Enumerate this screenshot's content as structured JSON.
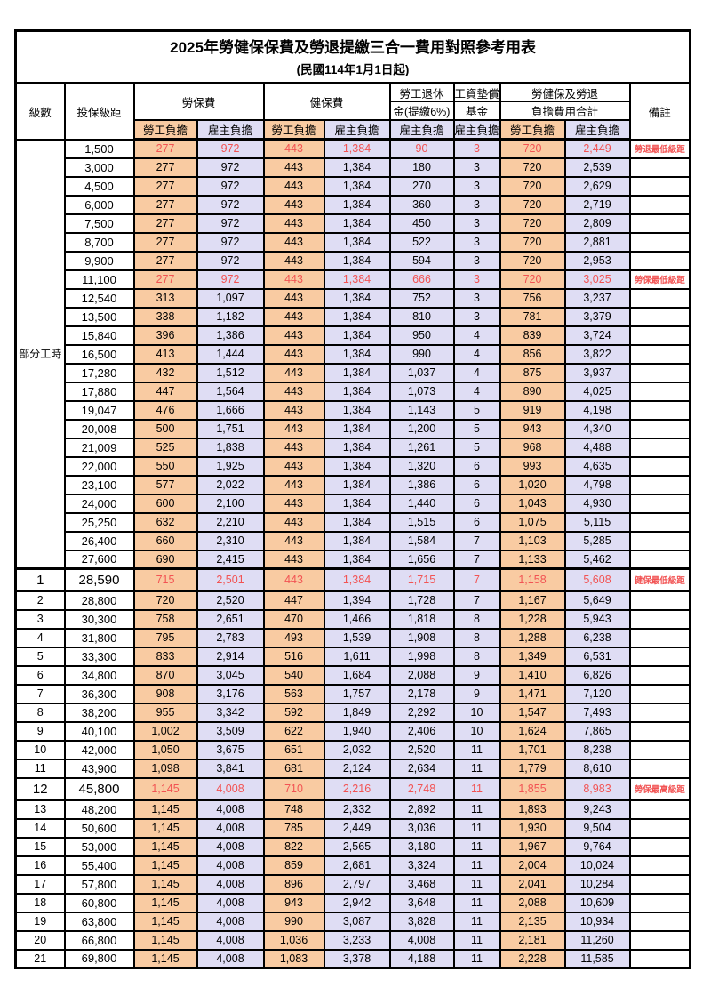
{
  "title": "2025年勞健保保費及勞退提繳三合一費用對照參考用表",
  "subtitle": "(民國114年1月1日起)",
  "colors": {
    "employee_fill": "#F9CBA2",
    "employer_fill": "#DFDDF4",
    "highlight_text": "#F25353",
    "border": "#000000"
  },
  "header": {
    "level": "級數",
    "salary": "投保級距",
    "labor_fee": "勞保費",
    "health_fee": "健保費",
    "pension_line1": "勞工退休",
    "pension_line2": "金(提繳6%)",
    "wage_fund_line1": "工資墊償",
    "wage_fund_line2": "基金",
    "total_line1": "勞健保及勞退",
    "total_line2": "負擔費用合計",
    "remark": "備註",
    "employee_share": "勞工負擔",
    "employer_share": "雇主負擔"
  },
  "part_time_label": "部分工時",
  "part_time_span": 23,
  "highlight_rows": [
    0,
    7,
    23,
    34
  ],
  "emphasis_rows": [
    23,
    34
  ],
  "row_fields": [
    "level",
    "salary",
    "labor_employee",
    "labor_employer",
    "health_employee",
    "health_employer",
    "pension_employer",
    "wage_fund_employer",
    "total_employee",
    "total_employer",
    "remark"
  ],
  "rows": [
    [
      "",
      "1,500",
      "277",
      "972",
      "443",
      "1,384",
      "90",
      "3",
      "720",
      "2,449",
      "勞退最低級距"
    ],
    [
      "",
      "3,000",
      "277",
      "972",
      "443",
      "1,384",
      "180",
      "3",
      "720",
      "2,539",
      ""
    ],
    [
      "",
      "4,500",
      "277",
      "972",
      "443",
      "1,384",
      "270",
      "3",
      "720",
      "2,629",
      ""
    ],
    [
      "",
      "6,000",
      "277",
      "972",
      "443",
      "1,384",
      "360",
      "3",
      "720",
      "2,719",
      ""
    ],
    [
      "",
      "7,500",
      "277",
      "972",
      "443",
      "1,384",
      "450",
      "3",
      "720",
      "2,809",
      ""
    ],
    [
      "",
      "8,700",
      "277",
      "972",
      "443",
      "1,384",
      "522",
      "3",
      "720",
      "2,881",
      ""
    ],
    [
      "",
      "9,900",
      "277",
      "972",
      "443",
      "1,384",
      "594",
      "3",
      "720",
      "2,953",
      ""
    ],
    [
      "",
      "11,100",
      "277",
      "972",
      "443",
      "1,384",
      "666",
      "3",
      "720",
      "3,025",
      "勞保最低級距"
    ],
    [
      "",
      "12,540",
      "313",
      "1,097",
      "443",
      "1,384",
      "752",
      "3",
      "756",
      "3,237",
      ""
    ],
    [
      "",
      "13,500",
      "338",
      "1,182",
      "443",
      "1,384",
      "810",
      "3",
      "781",
      "3,379",
      ""
    ],
    [
      "",
      "15,840",
      "396",
      "1,386",
      "443",
      "1,384",
      "950",
      "4",
      "839",
      "3,724",
      ""
    ],
    [
      "",
      "16,500",
      "413",
      "1,444",
      "443",
      "1,384",
      "990",
      "4",
      "856",
      "3,822",
      ""
    ],
    [
      "",
      "17,280",
      "432",
      "1,512",
      "443",
      "1,384",
      "1,037",
      "4",
      "875",
      "3,937",
      ""
    ],
    [
      "",
      "17,880",
      "447",
      "1,564",
      "443",
      "1,384",
      "1,073",
      "4",
      "890",
      "4,025",
      ""
    ],
    [
      "",
      "19,047",
      "476",
      "1,666",
      "443",
      "1,384",
      "1,143",
      "5",
      "919",
      "4,198",
      ""
    ],
    [
      "",
      "20,008",
      "500",
      "1,751",
      "443",
      "1,384",
      "1,200",
      "5",
      "943",
      "4,340",
      ""
    ],
    [
      "",
      "21,009",
      "525",
      "1,838",
      "443",
      "1,384",
      "1,261",
      "5",
      "968",
      "4,488",
      ""
    ],
    [
      "",
      "22,000",
      "550",
      "1,925",
      "443",
      "1,384",
      "1,320",
      "6",
      "993",
      "4,635",
      ""
    ],
    [
      "",
      "23,100",
      "577",
      "2,022",
      "443",
      "1,384",
      "1,386",
      "6",
      "1,020",
      "4,798",
      ""
    ],
    [
      "",
      "24,000",
      "600",
      "2,100",
      "443",
      "1,384",
      "1,440",
      "6",
      "1,043",
      "4,930",
      ""
    ],
    [
      "",
      "25,250",
      "632",
      "2,210",
      "443",
      "1,384",
      "1,515",
      "6",
      "1,075",
      "5,115",
      ""
    ],
    [
      "",
      "26,400",
      "660",
      "2,310",
      "443",
      "1,384",
      "1,584",
      "7",
      "1,103",
      "5,285",
      ""
    ],
    [
      "",
      "27,600",
      "690",
      "2,415",
      "443",
      "1,384",
      "1,656",
      "7",
      "1,133",
      "5,462",
      ""
    ],
    [
      "1",
      "28,590",
      "715",
      "2,501",
      "443",
      "1,384",
      "1,715",
      "7",
      "1,158",
      "5,608",
      "健保最低級距"
    ],
    [
      "2",
      "28,800",
      "720",
      "2,520",
      "447",
      "1,394",
      "1,728",
      "7",
      "1,167",
      "5,649",
      ""
    ],
    [
      "3",
      "30,300",
      "758",
      "2,651",
      "470",
      "1,466",
      "1,818",
      "8",
      "1,228",
      "5,943",
      ""
    ],
    [
      "4",
      "31,800",
      "795",
      "2,783",
      "493",
      "1,539",
      "1,908",
      "8",
      "1,288",
      "6,238",
      ""
    ],
    [
      "5",
      "33,300",
      "833",
      "2,914",
      "516",
      "1,611",
      "1,998",
      "8",
      "1,349",
      "6,531",
      ""
    ],
    [
      "6",
      "34,800",
      "870",
      "3,045",
      "540",
      "1,684",
      "2,088",
      "9",
      "1,410",
      "6,826",
      ""
    ],
    [
      "7",
      "36,300",
      "908",
      "3,176",
      "563",
      "1,757",
      "2,178",
      "9",
      "1,471",
      "7,120",
      ""
    ],
    [
      "8",
      "38,200",
      "955",
      "3,342",
      "592",
      "1,849",
      "2,292",
      "10",
      "1,547",
      "7,493",
      ""
    ],
    [
      "9",
      "40,100",
      "1,002",
      "3,509",
      "622",
      "1,940",
      "2,406",
      "10",
      "1,624",
      "7,865",
      ""
    ],
    [
      "10",
      "42,000",
      "1,050",
      "3,675",
      "651",
      "2,032",
      "2,520",
      "11",
      "1,701",
      "8,238",
      ""
    ],
    [
      "11",
      "43,900",
      "1,098",
      "3,841",
      "681",
      "2,124",
      "2,634",
      "11",
      "1,779",
      "8,610",
      ""
    ],
    [
      "12",
      "45,800",
      "1,145",
      "4,008",
      "710",
      "2,216",
      "2,748",
      "11",
      "1,855",
      "8,983",
      "勞保最高級距"
    ],
    [
      "13",
      "48,200",
      "1,145",
      "4,008",
      "748",
      "2,332",
      "2,892",
      "11",
      "1,893",
      "9,243",
      ""
    ],
    [
      "14",
      "50,600",
      "1,145",
      "4,008",
      "785",
      "2,449",
      "3,036",
      "11",
      "1,930",
      "9,504",
      ""
    ],
    [
      "15",
      "53,000",
      "1,145",
      "4,008",
      "822",
      "2,565",
      "3,180",
      "11",
      "1,967",
      "9,764",
      ""
    ],
    [
      "16",
      "55,400",
      "1,145",
      "4,008",
      "859",
      "2,681",
      "3,324",
      "11",
      "2,004",
      "10,024",
      ""
    ],
    [
      "17",
      "57,800",
      "1,145",
      "4,008",
      "896",
      "2,797",
      "3,468",
      "11",
      "2,041",
      "10,284",
      ""
    ],
    [
      "18",
      "60,800",
      "1,145",
      "4,008",
      "943",
      "2,942",
      "3,648",
      "11",
      "2,088",
      "10,609",
      ""
    ],
    [
      "19",
      "63,800",
      "1,145",
      "4,008",
      "990",
      "3,087",
      "3,828",
      "11",
      "2,135",
      "10,934",
      ""
    ],
    [
      "20",
      "66,800",
      "1,145",
      "4,008",
      "1,036",
      "3,233",
      "4,008",
      "11",
      "2,181",
      "11,260",
      ""
    ],
    [
      "21",
      "69,800",
      "1,145",
      "4,008",
      "1,083",
      "3,378",
      "4,188",
      "11",
      "2,228",
      "11,585",
      ""
    ]
  ]
}
